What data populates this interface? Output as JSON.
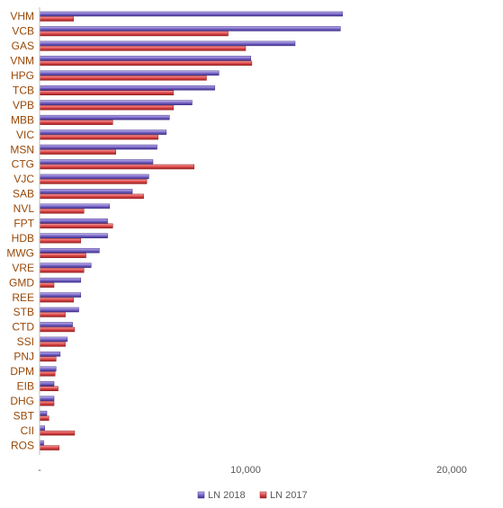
{
  "chart_data": {
    "type": "bar",
    "orientation": "horizontal",
    "categories": [
      "VHM",
      "VCB",
      "GAS",
      "VNM",
      "HPG",
      "TCB",
      "VPB",
      "MBB",
      "VIC",
      "MSN",
      "CTG",
      "VJC",
      "SAB",
      "NVL",
      "FPT",
      "HDB",
      "MWG",
      "VRE",
      "GMD",
      "REE",
      "STB",
      "CTD",
      "SSI",
      "PNJ",
      "DPM",
      "EIB",
      "DHG",
      "SBT",
      "CII",
      "ROS"
    ],
    "series": [
      {
        "name": "LN 2018",
        "color": "#7b68c8",
        "values": [
          14700,
          14600,
          12400,
          10250,
          8700,
          8500,
          7400,
          6300,
          6150,
          5700,
          5500,
          5300,
          4500,
          3400,
          3300,
          3300,
          2900,
          2500,
          2000,
          2000,
          1900,
          1600,
          1350,
          1000,
          800,
          700,
          700,
          350,
          250,
          200
        ]
      },
      {
        "name": "LN 2017",
        "color": "#e0484a",
        "values": [
          1650,
          9150,
          10000,
          10300,
          8100,
          6500,
          6500,
          3550,
          5750,
          3700,
          7500,
          5200,
          5050,
          2150,
          3550,
          2000,
          2250,
          2150,
          700,
          1650,
          1250,
          1700,
          1250,
          800,
          750,
          900,
          700,
          450,
          1700,
          950
        ]
      }
    ],
    "xlim": [
      0,
      20000
    ],
    "x_ticks": [
      "-",
      "10,000",
      "20,000"
    ],
    "x_tick_values": [
      0,
      10000,
      20000
    ],
    "legend": {
      "position": "bottom",
      "entries": [
        "LN 2018",
        "LN 2017"
      ]
    },
    "grid": false
  }
}
